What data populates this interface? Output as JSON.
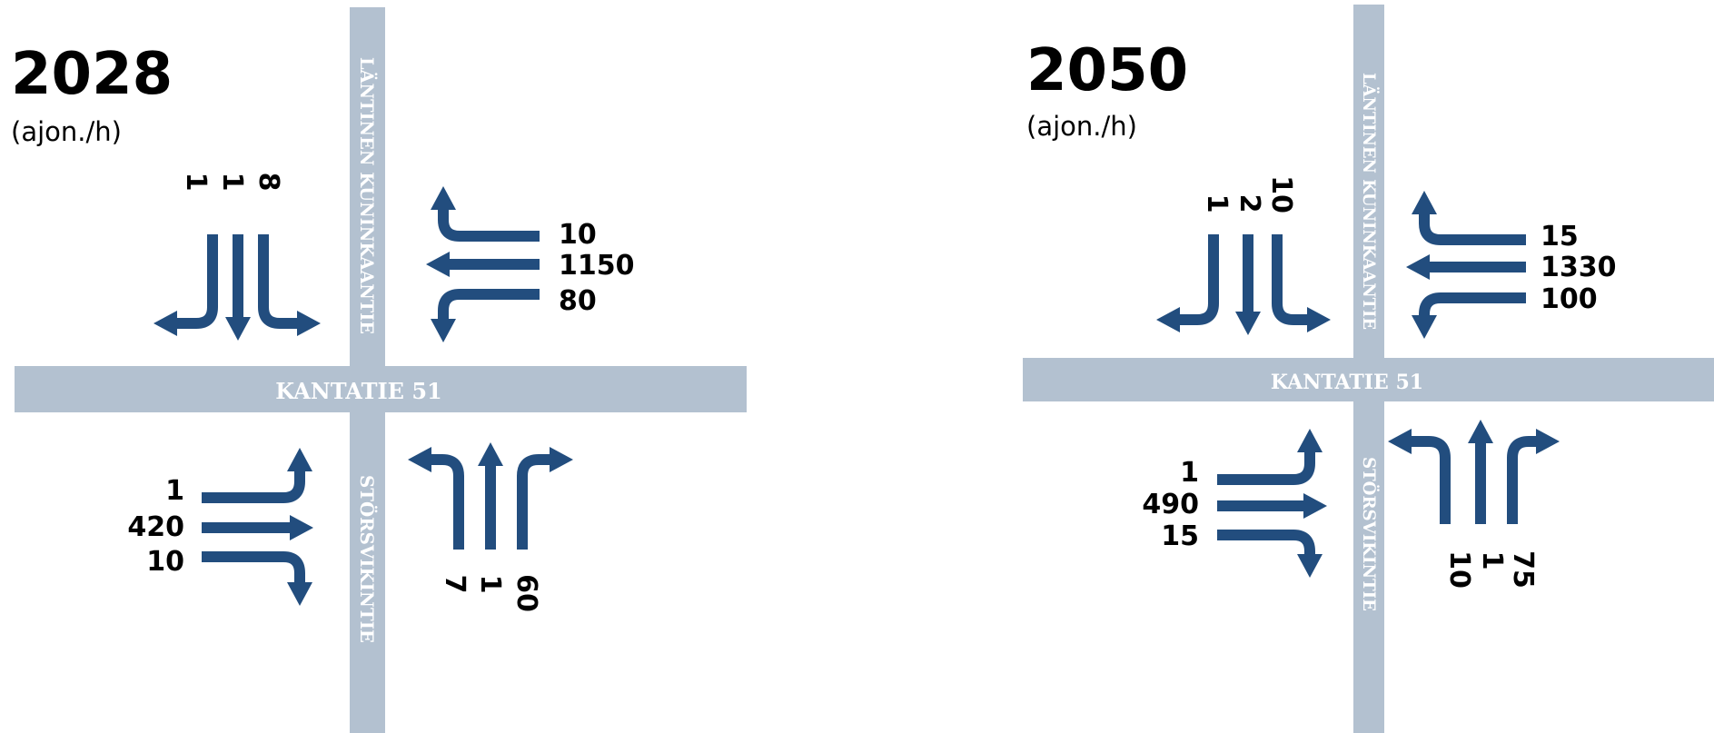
{
  "roads": {
    "main": "KANTATIE 51",
    "north": "LÄNTINEN KUNINKAANTIE",
    "south": "STÖRSVIKINTIE"
  },
  "colors": {
    "road": "#b3c1d0",
    "arrow": "#224d7e",
    "text": "#000000"
  },
  "icons": {
    "movement": "turn-arrow-icon"
  },
  "panels": [
    {
      "year": "2028",
      "unit": "(ajon./h)",
      "north_approach": [
        "1",
        "1",
        "8"
      ],
      "east_approach": [
        "10",
        "1150",
        "80"
      ],
      "west_approach": [
        "1",
        "420",
        "10"
      ],
      "south_approach": [
        "7",
        "1",
        "60"
      ]
    },
    {
      "year": "2050",
      "unit": "(ajon./h)",
      "north_approach": [
        "1",
        "2",
        "10"
      ],
      "east_approach": [
        "15",
        "1330",
        "100"
      ],
      "west_approach": [
        "1",
        "490",
        "15"
      ],
      "south_approach": [
        "10",
        "1",
        "75"
      ]
    }
  ]
}
